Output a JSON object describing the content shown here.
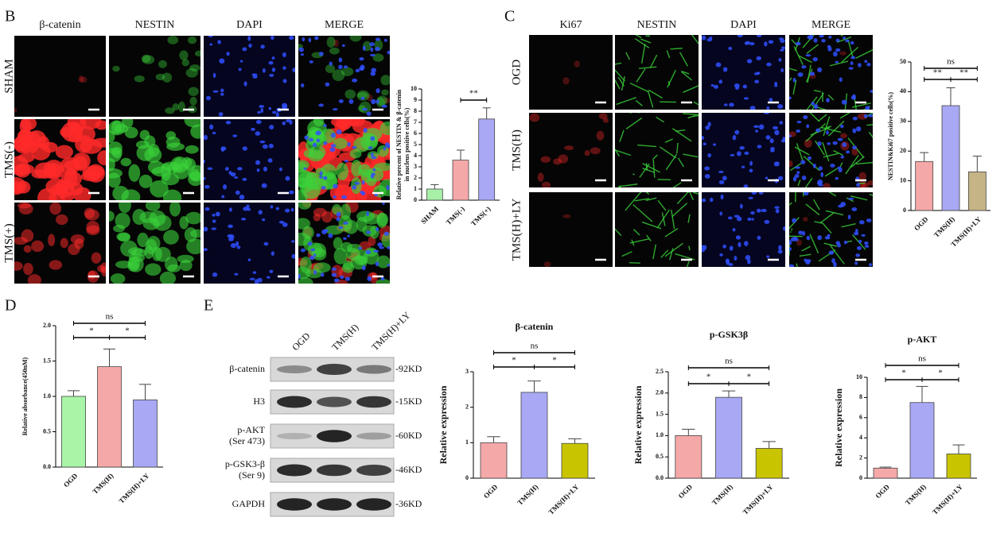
{
  "panel_labels": [
    "B",
    "C",
    "D",
    "E"
  ],
  "panel_b": {
    "columns": [
      "β-catenin",
      "NESTIN",
      "DAPI",
      "MERGE"
    ],
    "rows": [
      "SHAM",
      "TMS(-)",
      "TMS(+)"
    ]
  },
  "panel_c": {
    "columns": [
      "Ki67",
      "NESTIN",
      "DAPI",
      "MERGE"
    ],
    "rows": [
      "OGD",
      "TMS(H)",
      "TMS(H)+LY"
    ]
  },
  "western_blot": {
    "lanes": [
      "OGD",
      "TMS(H)",
      "TMS(H)+LY"
    ],
    "proteins": [
      [
        "β-catenin"
      ],
      [
        "H3"
      ],
      [
        "p-AKT",
        "(Ser 473)"
      ],
      [
        "p-GSK3-β",
        "(Ser 9)"
      ],
      [
        "GAPDH"
      ]
    ],
    "sizes": [
      "-92KD",
      "-15KD",
      "-60KD",
      "-46KD",
      "-36KD"
    ]
  },
  "chart_data": [
    {
      "type": "bar",
      "y_label": [
        "Relative percent of NESTIN & β-catenin",
        "in nucleus positive cells(%)"
      ],
      "categories": [
        "SHAM",
        "TMS(-)",
        "TMS(+)"
      ],
      "values": [
        1.0,
        3.6,
        7.3
      ],
      "errors": [
        0.4,
        0.9,
        1.0
      ],
      "colors": [
        "#a8f0a8",
        "#f5a8a8",
        "#a8a8f5"
      ],
      "ylim": [
        0,
        10
      ],
      "yticks": [
        0,
        1,
        2,
        3,
        4,
        5,
        6,
        7,
        8,
        9,
        10
      ],
      "comparisons": [
        {
          "label": "**",
          "pair": [
            "TMS(-)",
            "TMS(+)"
          ]
        }
      ]
    },
    {
      "type": "bar",
      "y_label": [
        "NESTIN&Ki67 positive cells(%)"
      ],
      "categories": [
        "OGD",
        "TMS(H)",
        "TMS(H)+LY"
      ],
      "values": [
        16.5,
        35.3,
        13
      ],
      "errors": [
        3,
        6,
        5.3
      ],
      "colors": [
        "#f5a8a8",
        "#a8a8f5",
        "#c4b486"
      ],
      "ylim": [
        0,
        50
      ],
      "yticks": [
        0,
        10,
        20,
        30,
        40,
        50
      ],
      "comparisons": [
        {
          "label": "ns",
          "pair": [
            "OGD",
            "TMS(H)+LY"
          ]
        },
        {
          "label": "**",
          "pair": [
            "OGD",
            "TMS(H)"
          ]
        },
        {
          "label": "**",
          "pair": [
            "TMS(H)",
            "TMS(H)+LY"
          ]
        }
      ]
    },
    {
      "type": "bar",
      "y_label": [
        "Relative absorbance(450nM)"
      ],
      "categories": [
        "OGD",
        "TMS(H)",
        "TMS(H)+LY"
      ],
      "values": [
        1.0,
        1.42,
        0.95
      ],
      "errors": [
        0.08,
        0.25,
        0.22
      ],
      "colors": [
        "#a8f5a8",
        "#f5a8a8",
        "#a8a8f5"
      ],
      "ylim": [
        0,
        2
      ],
      "yticks": [
        {
          "value": 0,
          "label": "0.0"
        },
        0.5,
        {
          "value": 1,
          "label": "1.0"
        },
        1.5,
        {
          "value": 2,
          "label": "2.0"
        }
      ],
      "comparisons": [
        {
          "label": "ns",
          "pair": [
            "OGD",
            "TMS(H)+LY"
          ]
        },
        {
          "label": "*",
          "pair": [
            "OGD",
            "TMS(H)"
          ]
        },
        {
          "label": "*",
          "pair": [
            "TMS(H)",
            "TMS(H)+LY"
          ]
        }
      ]
    },
    {
      "type": "bar",
      "title": "β-catenin",
      "y_label": [
        "Relative  expression"
      ],
      "categories": [
        "OGD",
        "TMS(H)",
        "TMS(H)+LY"
      ],
      "values": [
        1.0,
        2.42,
        0.98
      ],
      "errors": [
        0.17,
        0.32,
        0.13
      ],
      "colors": [
        "#f5a8a8",
        "#a8a8f5",
        "#c8c400"
      ],
      "ylim": [
        0,
        3
      ],
      "yticks": [
        0,
        1,
        2,
        3
      ],
      "comparisons": [
        {
          "label": "ns",
          "pair": [
            "OGD",
            "TMS(H)+LY"
          ]
        },
        {
          "label": "*",
          "pair": [
            "OGD",
            "TMS(H)"
          ]
        },
        {
          "label": "*",
          "pair": [
            "TMS(H)",
            "TMS(H)+LY"
          ]
        }
      ]
    },
    {
      "type": "bar",
      "title": "p-GSK3β",
      "y_label": [
        "Relative  expression"
      ],
      "categories": [
        "OGD",
        "TMS(H)",
        "TMS(H)+LY"
      ],
      "values": [
        1.0,
        1.9,
        0.7
      ],
      "errors": [
        0.15,
        0.15,
        0.16
      ],
      "colors": [
        "#f5a8a8",
        "#a8a8f5",
        "#c8c400"
      ],
      "ylim": [
        0,
        2.5
      ],
      "yticks": [
        {
          "value": 0,
          "label": "0.0"
        },
        0.5,
        {
          "value": 1,
          "label": "1.0"
        },
        1.5,
        {
          "value": 2,
          "label": "2.0"
        },
        2.5
      ],
      "comparisons": [
        {
          "label": "ns",
          "pair": [
            "OGD",
            "TMS(H)+LY"
          ]
        },
        {
          "label": "*",
          "pair": [
            "OGD",
            "TMS(H)"
          ]
        },
        {
          "label": "*",
          "pair": [
            "TMS(H)",
            "TMS(H)+LY"
          ]
        }
      ]
    },
    {
      "type": "bar",
      "title": "p-AKT",
      "y_label": [
        "Relative  expression"
      ],
      "categories": [
        "OGD",
        "TMS(H)",
        "TMS(H)+LY"
      ],
      "values": [
        1.0,
        7.5,
        2.4
      ],
      "errors": [
        0.1,
        1.6,
        0.9
      ],
      "colors": [
        "#f5a8a8",
        "#a8a8f5",
        "#c8c400"
      ],
      "ylim": [
        0,
        10
      ],
      "yticks": [
        0,
        2,
        4,
        6,
        8,
        10
      ],
      "comparisons": [
        {
          "label": "ns",
          "pair": [
            "OGD",
            "TMS(H)+LY"
          ]
        },
        {
          "label": "*",
          "pair": [
            "OGD",
            "TMS(H)"
          ]
        },
        {
          "label": "*",
          "pair": [
            "TMS(H)",
            "TMS(H)+LY"
          ]
        }
      ]
    }
  ]
}
